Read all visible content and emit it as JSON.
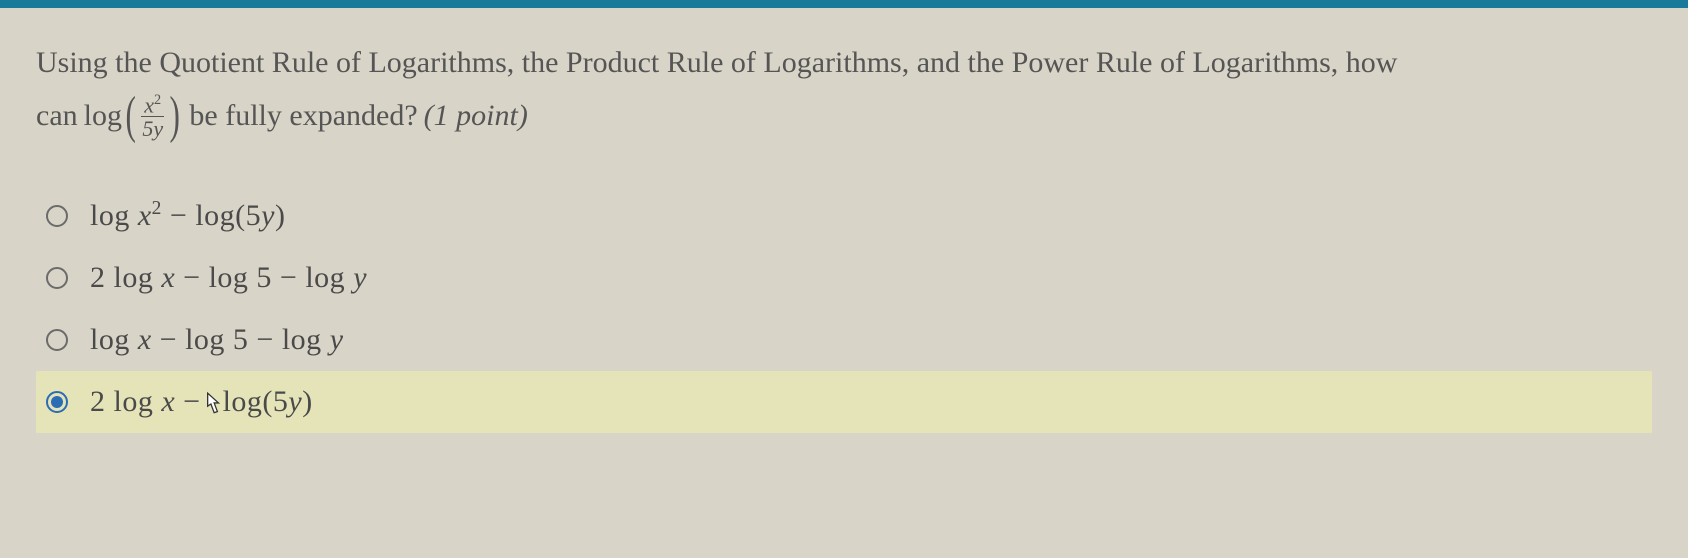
{
  "colors": {
    "top_bar": "#1a7a9a",
    "background": "#d9d4c8",
    "text": "#4a4a4a",
    "highlight_bg": "#e5e4b8",
    "radio_border": "#6b6b6b",
    "radio_selected": "#2a6db5"
  },
  "question": {
    "line1": "Using the Quotient Rule of Logarithms, the Product Rule of Logarithms, and the Power Rule of Logarithms, how",
    "line2_prefix": "can ",
    "log_text": "log",
    "frac_num": "x",
    "frac_num_exp": "2",
    "frac_den": "5y",
    "line2_suffix": " be fully expanded?  ",
    "points": "(1 point)"
  },
  "options": [
    {
      "id": "opt-a",
      "selected": false,
      "parts": [
        "log ",
        {
          "var": "x"
        },
        {
          "sup": "2"
        },
        " − log(5",
        {
          "var": "y"
        },
        ")"
      ]
    },
    {
      "id": "opt-b",
      "selected": false,
      "parts": [
        "2 log ",
        {
          "var": "x"
        },
        " − log 5 − log ",
        {
          "var": "y"
        }
      ]
    },
    {
      "id": "opt-c",
      "selected": false,
      "parts": [
        "log ",
        {
          "var": "x"
        },
        " − log 5 − log ",
        {
          "var": "y"
        }
      ]
    },
    {
      "id": "opt-d",
      "selected": true,
      "parts": [
        "2 log ",
        {
          "var": "x"
        },
        " −",
        {
          "cursor": true
        },
        "log(5",
        {
          "var": "y"
        },
        ")"
      ]
    }
  ]
}
